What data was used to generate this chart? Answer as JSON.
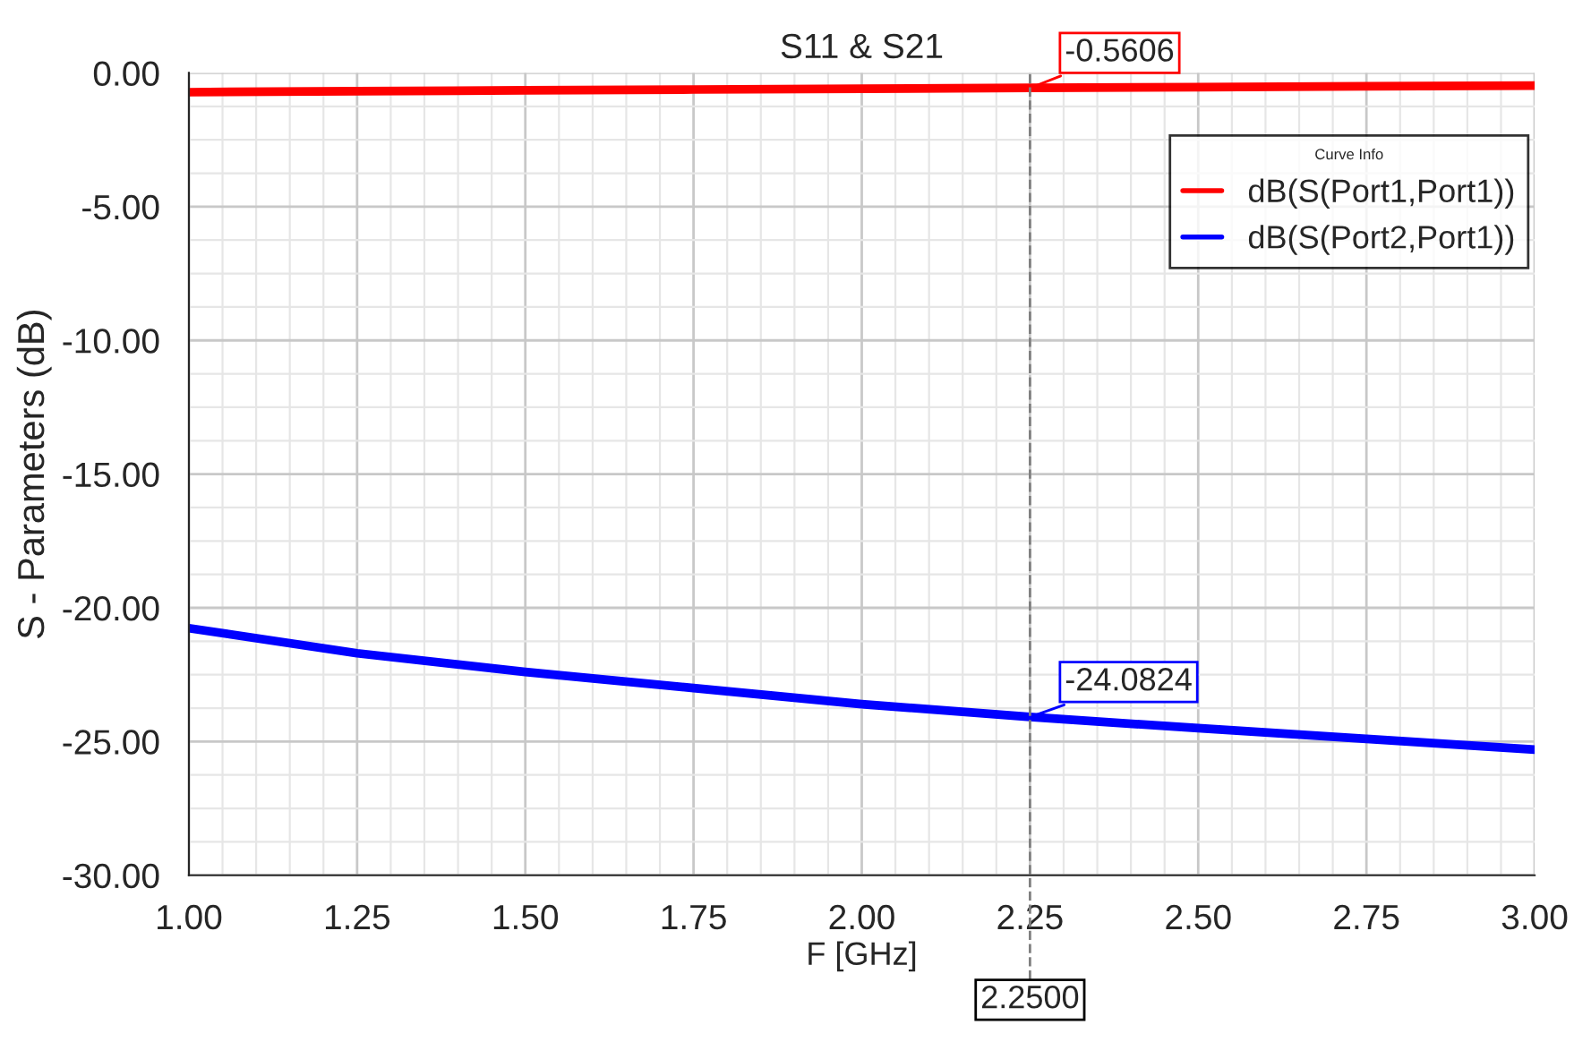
{
  "chart_data": {
    "type": "line",
    "title": "S11 & S21",
    "xlabel": "F [GHz]",
    "ylabel": "S - Parameters (dB)",
    "legend_title": "Curve Info",
    "legend": "top right",
    "grid": true,
    "x": [
      1.0,
      1.25,
      1.5,
      1.75,
      2.0,
      2.25,
      2.5,
      2.75,
      3.0
    ],
    "series": [
      {
        "name": "dB(S(Port1,Port1))",
        "color": "#ff0000",
        "values": [
          -0.72,
          -0.68,
          -0.65,
          -0.62,
          -0.59,
          -0.56,
          -0.53,
          -0.5,
          -0.47
        ]
      },
      {
        "name": "dB(S(Port2,Port1))",
        "color": "#0000ff",
        "values": [
          -20.76,
          -21.7,
          -22.4,
          -23.0,
          -23.6,
          -24.08,
          -24.5,
          -24.9,
          -25.3
        ]
      }
    ],
    "xlim": [
      1.0,
      3.0
    ],
    "ylim": [
      -30.0,
      0.0
    ],
    "xticks": [
      {
        "value": 1.0,
        "label": "1.00"
      },
      {
        "value": 1.25,
        "label": "1.25"
      },
      {
        "value": 1.5,
        "label": "1.50"
      },
      {
        "value": 1.75,
        "label": "1.75"
      },
      {
        "value": 2.0,
        "label": "2.00"
      },
      {
        "value": 2.25,
        "label": "2.25"
      },
      {
        "value": 2.5,
        "label": "2.50"
      },
      {
        "value": 2.75,
        "label": "2.75"
      },
      {
        "value": 3.0,
        "label": "3.00"
      }
    ],
    "yticks": [
      {
        "value": -30.0,
        "label": "-30.00"
      },
      {
        "value": -25.0,
        "label": "-25.00"
      },
      {
        "value": -20.0,
        "label": "-20.00"
      },
      {
        "value": -15.0,
        "label": "-15.00"
      },
      {
        "value": -10.0,
        "label": "-10.00"
      },
      {
        "value": -5.0,
        "label": "-5.00"
      },
      {
        "value": 0.0,
        "label": "0.00"
      }
    ],
    "ref_lines": [
      {
        "axis": "x",
        "value": 2.25,
        "label": "2.2500",
        "color": "#808080",
        "line_style": "dashed"
      }
    ],
    "annotations": [
      {
        "text": "-0.5606",
        "x": 2.25,
        "y": -0.5606
      },
      {
        "text": "-24.0824",
        "x": 2.25,
        "y": -24.0824
      }
    ]
  }
}
